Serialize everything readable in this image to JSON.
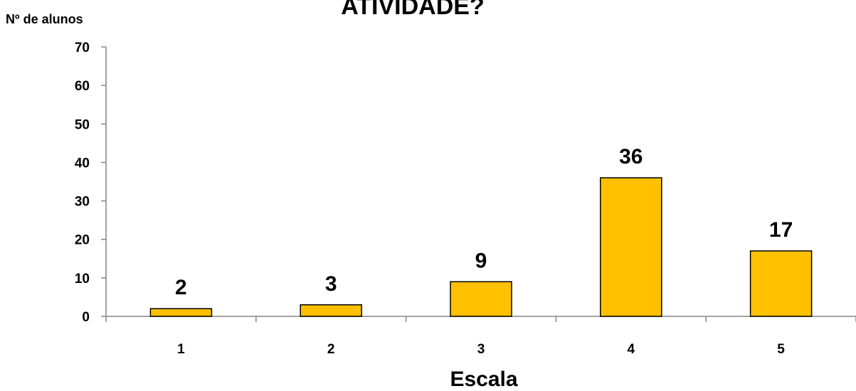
{
  "chart_data": {
    "type": "bar",
    "title": "ATIVIDADE?",
    "ylabel": "Nº de alunos",
    "xlabel": "Escala",
    "categories": [
      "1",
      "2",
      "3",
      "4",
      "5"
    ],
    "values": [
      2,
      3,
      9,
      36,
      17
    ],
    "ylim": [
      0,
      70
    ],
    "yticks": [
      0,
      10,
      20,
      30,
      40,
      50,
      60,
      70
    ],
    "grid": false,
    "legend": "none",
    "bar_color": "#FFC000",
    "bar_border_color": "#000000"
  }
}
